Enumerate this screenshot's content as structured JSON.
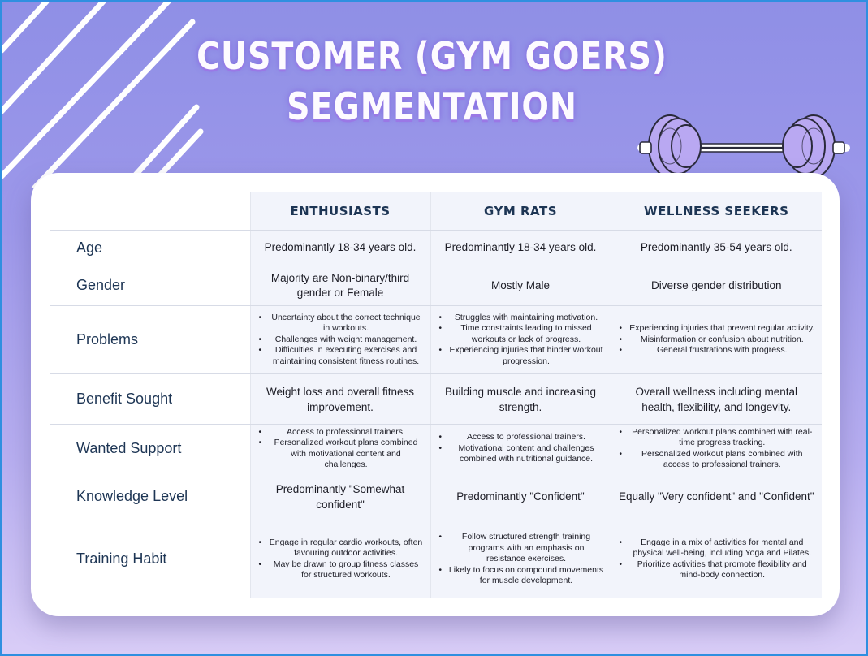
{
  "title": {
    "line1": "CUSTOMER (GYM GOERS)",
    "line2": "SEGMENTATION"
  },
  "colors": {
    "accent": "#2f8fe0",
    "background_top": "#8f8fe6",
    "background_bottom": "#d9cdf7",
    "text_dark": "#1d3554",
    "cell_bg": "#f2f4fb"
  },
  "decorations": {
    "barbell_icon": "barbell-icon",
    "stripes": "diagonal-stripes"
  },
  "table": {
    "headers": [
      "ENTHUSIASTS",
      "GYM RATS",
      "WELLNESS SEEKERS"
    ],
    "rows": [
      {
        "label": "Age",
        "cells": [
          {
            "text": "Predominantly 18-34 years old."
          },
          {
            "text": "Predominantly 18-34 years old."
          },
          {
            "text": "Predominantly 35-54 years old."
          }
        ]
      },
      {
        "label": "Gender",
        "cells": [
          {
            "text": "Majority are Non-binary/third gender or Female"
          },
          {
            "text": "Mostly Male"
          },
          {
            "text": "Diverse gender distribution"
          }
        ]
      },
      {
        "label": "Problems",
        "cells": [
          {
            "bullets": [
              "Uncertainty about the correct technique in workouts.",
              "Challenges with weight management.",
              "Difficulties in executing exercises and maintaining consistent fitness routines."
            ]
          },
          {
            "bullets": [
              "Struggles with maintaining motivation.",
              "Time constraints leading to missed workouts or lack of progress.",
              "Experiencing injuries that hinder workout progression."
            ]
          },
          {
            "bullets": [
              "Experiencing injuries that prevent regular activity.",
              "Misinformation or confusion about nutrition.",
              "General frustrations with progress."
            ]
          }
        ]
      },
      {
        "label": "Benefit Sought",
        "cells": [
          {
            "text": "Weight loss and overall fitness improvement."
          },
          {
            "text": "Building muscle and increasing strength."
          },
          {
            "text": "Overall wellness including mental health, flexibility, and longevity."
          }
        ]
      },
      {
        "label": "Wanted Support",
        "cells": [
          {
            "bullets": [
              "Access to professional trainers.",
              "Personalized workout plans combined with motivational content and challenges."
            ]
          },
          {
            "bullets": [
              "Access to professional trainers.",
              "Motivational content and challenges combined with nutritional guidance."
            ]
          },
          {
            "bullets": [
              "Personalized workout plans combined with real-time progress tracking.",
              "Personalized workout plans combined with access to professional trainers."
            ]
          }
        ]
      },
      {
        "label": "Knowledge Level",
        "cells": [
          {
            "text": "Predominantly \"Somewhat confident\""
          },
          {
            "text": "Predominantly \"Confident\""
          },
          {
            "text": "Equally \"Very confident\" and \"Confident\""
          }
        ]
      },
      {
        "label": "Training Habit",
        "cells": [
          {
            "bullets": [
              "Engage in regular cardio workouts, often favouring outdoor activities.",
              "May be drawn to group fitness classes for structured workouts."
            ]
          },
          {
            "bullets": [
              "Follow structured strength training programs with an emphasis on resistance exercises.",
              "Likely to focus on compound movements for muscle development."
            ]
          },
          {
            "bullets": [
              "Engage in a mix of activities for mental and physical well-being, including Yoga and Pilates.",
              "Prioritize activities that promote flexibility and mind-body connection."
            ]
          }
        ]
      }
    ]
  }
}
